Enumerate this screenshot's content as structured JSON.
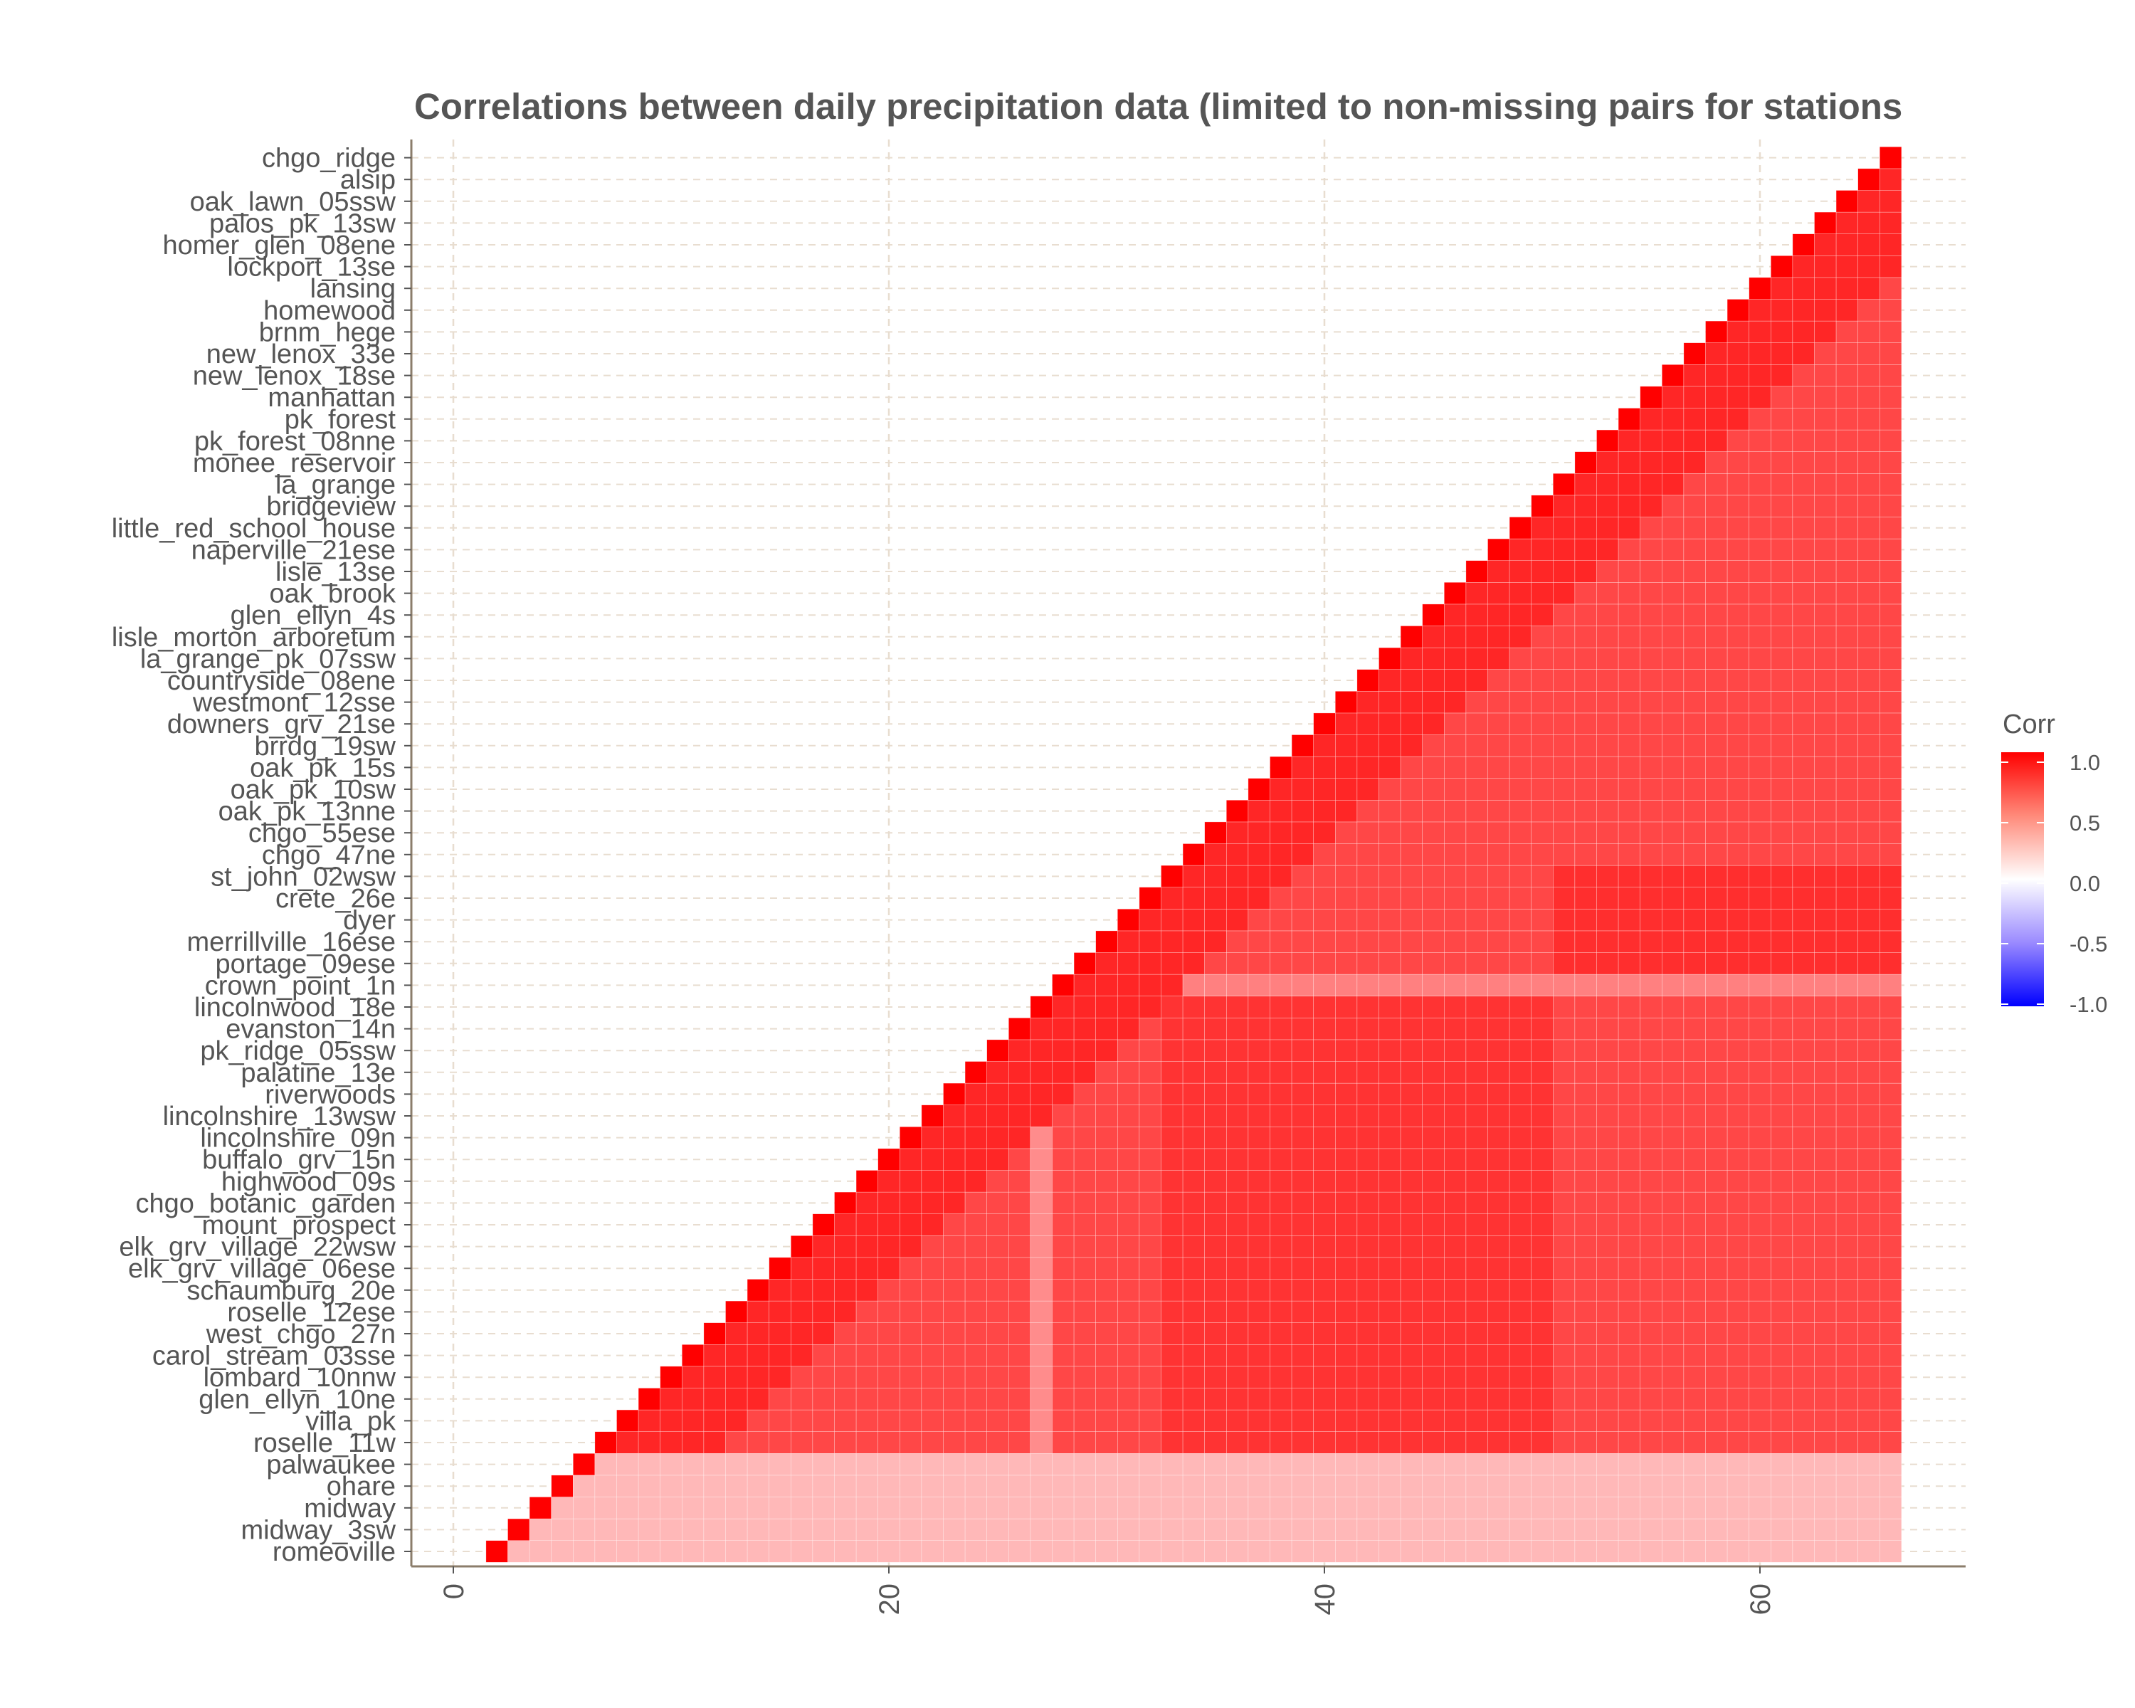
{
  "chart_data": {
    "type": "heatmap",
    "title": "Correlations between daily precipitation data (limited to non-missing pairs for stations",
    "xlabel": "",
    "ylabel": "",
    "xlim": [
      0,
      69
    ],
    "x_ticks": [
      "0",
      "20",
      "40",
      "60"
    ],
    "x_tick_values": [
      0,
      20,
      40,
      60
    ],
    "grid": true,
    "legend": {
      "title": "Corr",
      "position": "right",
      "ticks": [
        "1.0",
        "0.5",
        "0.0",
        "-0.5",
        "-1.0"
      ],
      "tick_values": [
        1.0,
        0.5,
        0.0,
        -0.5,
        -1.0
      ],
      "colors": {
        "low": "#0000ff",
        "mid": "#ffffff",
        "high": "#ff0000"
      }
    },
    "stations_top_to_bottom": [
      "chgo_ridge",
      "alsip",
      "oak_lawn_05ssw",
      "palos_pk_13sw",
      "homer_glen_08ene",
      "lockport_13se",
      "lansing",
      "homewood",
      "brnm_hege",
      "new_lenox_33e",
      "new_lenox_18se",
      "manhattan",
      "pk_forest",
      "pk_forest_08nne",
      "monee_reservoir",
      "la_grange",
      "bridgeview",
      "little_red_school_house",
      "naperville_21ese",
      "lisle_13se",
      "oak_brook",
      "glen_ellyn_4s",
      "lisle_morton_arboretum",
      "la_grange_pk_07ssw",
      "countryside_08ene",
      "westmont_12sse",
      "downers_grv_21se",
      "brrdg_19sw",
      "oak_pk_15s",
      "oak_pk_10sw",
      "oak_pk_13nne",
      "chgo_55ese",
      "chgo_47ne",
      "st_john_02wsw",
      "crete_26e",
      "dyer",
      "merrillville_16ese",
      "portage_09ese",
      "crown_point_1n",
      "lincolnwood_18e",
      "evanston_14n",
      "pk_ridge_05ssw",
      "palatine_13e",
      "riverwoods",
      "lincolnshire_13wsw",
      "lincolnshire_09n",
      "buffalo_grv_15n",
      "highwood_09s",
      "chgo_botanic_garden",
      "mount_prospect",
      "elk_grv_village_22wsw",
      "elk_grv_village_06ese",
      "schaumburg_20e",
      "roselle_12ese",
      "west_chgo_27n",
      "carol_stream_03sse",
      "lombard_10nnw",
      "glen_ellyn_10ne",
      "villa_pk",
      "roselle_11w",
      "palwaukee",
      "ohare",
      "midway",
      "midway_3sw",
      "romeoville"
    ],
    "matrix_shape": "lower-triangular: row at position k from the bottom (1-based) has cells at x = k+1 … 66; the cell at x = k+1 is the diagonal",
    "value_bands": [
      {
        "description": "diagonal cells",
        "value": 1.0
      },
      {
        "description": "cells near the diagonal",
        "value": 0.85
      },
      {
        "description": "bottom 5 rows (palwaukee, ohare, midway, midway_3sw, romeoville), off-diagonal",
        "value": 0.28
      },
      {
        "description": "column x = 27 band (crown_point_1n … roselle_11w)",
        "value": 0.45
      },
      {
        "description": "crown_point_1n row, x = 28–66",
        "value": 0.5
      },
      {
        "description": "block x = 33–50, rows lincolnwood_18e … roselle_11w",
        "value": 0.8
      },
      {
        "description": "block x = 51–66, rows st_john_02wsw … crown_point_1n",
        "value": 0.82
      },
      {
        "description": "typical remaining cells",
        "value": 0.72
      }
    ]
  }
}
